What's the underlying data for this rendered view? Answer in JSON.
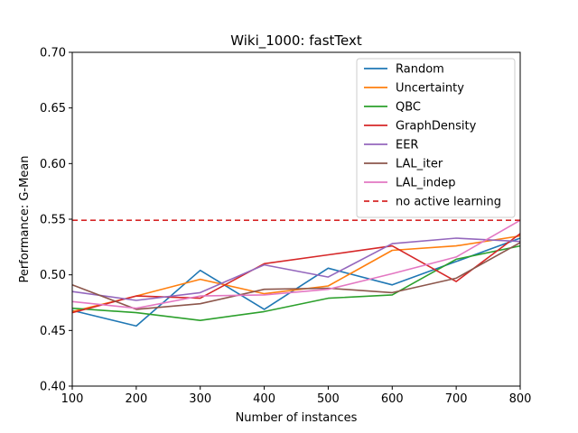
{
  "chart_data": {
    "type": "line",
    "title": "Wiki_1000: fastText",
    "xlabel": "Number of instances",
    "ylabel": "Performance: G-Mean",
    "xlim": [
      100,
      800
    ],
    "ylim": [
      0.4,
      0.7
    ],
    "x_ticks": [
      "100",
      "200",
      "300",
      "400",
      "500",
      "600",
      "700",
      "800"
    ],
    "y_ticks": [
      "0.40",
      "0.45",
      "0.50",
      "0.55",
      "0.60",
      "0.65",
      "0.70"
    ],
    "legend_position": "top-right",
    "grid": false,
    "x": [
      100,
      200,
      300,
      400,
      500,
      600,
      700,
      800
    ],
    "series": [
      {
        "name": "Random",
        "color": "#1f77b4",
        "style": "solid",
        "values": [
          0.468,
          0.454,
          0.504,
          0.469,
          0.506,
          0.491,
          0.512,
          0.533
        ]
      },
      {
        "name": "Uncertainty",
        "color": "#ff7f0e",
        "style": "solid",
        "values": [
          0.467,
          0.481,
          0.496,
          0.483,
          0.49,
          0.522,
          0.526,
          0.535
        ]
      },
      {
        "name": "QBC",
        "color": "#2ca02c",
        "style": "solid",
        "values": [
          0.47,
          0.466,
          0.459,
          0.467,
          0.479,
          0.482,
          0.514,
          0.526
        ]
      },
      {
        "name": "GraphDensity",
        "color": "#d62728",
        "style": "solid",
        "values": [
          0.466,
          0.481,
          0.479,
          0.51,
          0.518,
          0.526,
          0.494,
          0.537
        ]
      },
      {
        "name": "EER",
        "color": "#9467bd",
        "style": "solid",
        "values": [
          0.485,
          0.477,
          0.484,
          0.509,
          0.498,
          0.528,
          0.533,
          0.53
        ]
      },
      {
        "name": "LAL_iter",
        "color": "#8c564b",
        "style": "solid",
        "values": [
          0.491,
          0.469,
          0.474,
          0.487,
          0.488,
          0.484,
          0.497,
          0.529
        ]
      },
      {
        "name": "LAL_indep",
        "color": "#e377c2",
        "style": "solid",
        "values": [
          0.476,
          0.47,
          0.481,
          0.482,
          0.487,
          0.501,
          0.516,
          0.549
        ]
      },
      {
        "name": "no active learning",
        "color": "#d62728",
        "style": "dashed",
        "values": [
          0.549,
          0.549,
          0.549,
          0.549,
          0.549,
          0.549,
          0.549,
          0.549
        ]
      }
    ]
  }
}
